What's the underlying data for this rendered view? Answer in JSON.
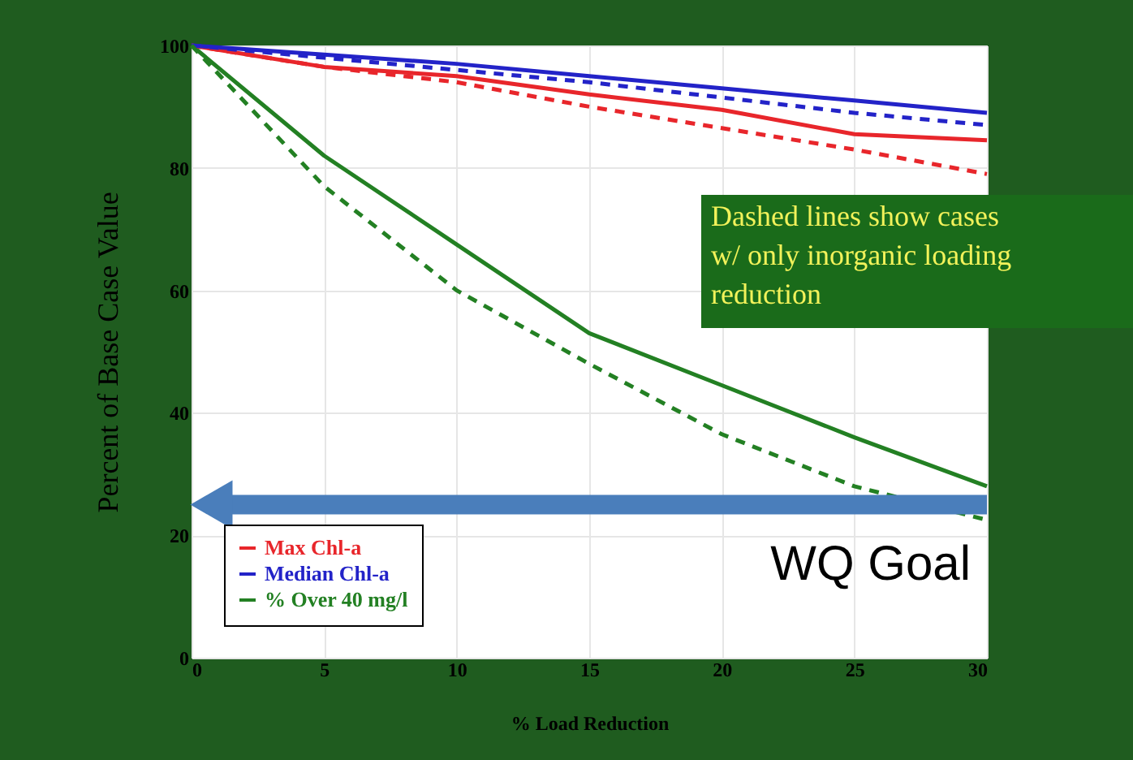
{
  "chart_data": {
    "type": "line",
    "xlabel": "% Load Reduction",
    "ylabel": "Percent of Base Case Value",
    "x": [
      0,
      5,
      10,
      15,
      20,
      25,
      30
    ],
    "series": [
      {
        "name": "Max Chl-a",
        "color": "#e8262b",
        "values": [
          100,
          96.5,
          95,
          92,
          89.5,
          85.5,
          84.5
        ]
      },
      {
        "name": "Median Chl-a",
        "color": "#2323c8",
        "values": [
          100,
          98.5,
          97,
          95,
          93,
          91,
          89
        ]
      },
      {
        "name": "% Over 40 mg/l",
        "color": "#238023",
        "values": [
          100,
          82,
          67.5,
          53,
          44.5,
          36,
          28
        ]
      },
      {
        "color": "#e8262b",
        "line_style": "dashed",
        "values": [
          100,
          96.5,
          94,
          90,
          86.5,
          83,
          79
        ]
      },
      {
        "color": "#2323c8",
        "line_style": "dashed",
        "values": [
          100,
          98,
          96,
          94,
          91.5,
          89,
          87
        ]
      },
      {
        "color": "#238023",
        "line_style": "dashed",
        "values": [
          100,
          77,
          60,
          48,
          36.5,
          28,
          22.5
        ]
      }
    ],
    "xlim": [
      0,
      30
    ],
    "xticks": [
      0,
      5,
      10,
      15,
      20,
      25,
      30
    ],
    "ylim": [
      0,
      100
    ],
    "yticks": [
      0,
      20,
      40,
      60,
      80,
      100
    ],
    "grid": true,
    "legend": "bottom left",
    "line_style": "solid",
    "marker": "none",
    "ref_lines": [
      {
        "axis": "y",
        "value": 25,
        "label": "WQ Goal",
        "color": "#4a7ebb"
      }
    ],
    "annotations": [
      "Dashed lines show cases w/ only inorganic loading reduction"
    ]
  }
}
